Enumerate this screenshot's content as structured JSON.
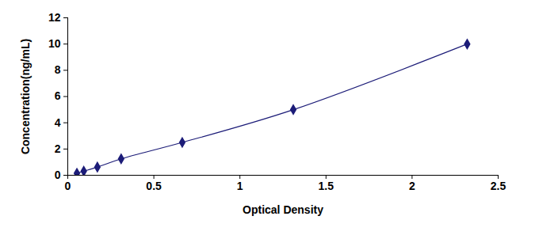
{
  "chart_data": {
    "type": "line",
    "x_label": "Optical Density",
    "y_label": "Concentration(ng/mL)",
    "x": [
      0.053,
      0.093,
      0.172,
      0.31,
      0.665,
      1.31,
      2.32
    ],
    "values": [
      0.156,
      0.313,
      0.625,
      1.25,
      2.5,
      5,
      10
    ],
    "color": "#1c1c78",
    "marker": "diamond",
    "xlim": [
      0,
      2.5
    ],
    "xticks": [
      0,
      0.5,
      1,
      1.5,
      2,
      2.5
    ],
    "ylim": [
      0,
      12
    ],
    "yticks": [
      0,
      2,
      4,
      6,
      8,
      10,
      12
    ],
    "grid": false
  }
}
